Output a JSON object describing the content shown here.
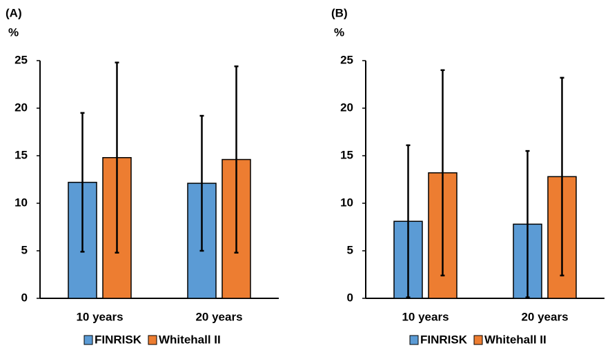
{
  "chart_data": [
    {
      "type": "bar",
      "panel_label": "(A)",
      "ylabel": "%",
      "categories": [
        "10 years",
        "20 years"
      ],
      "series": [
        {
          "name": "FINRISK",
          "color": "#5b9bd5",
          "values": [
            12.2,
            12.1
          ],
          "errors": [
            7.3,
            7.1
          ]
        },
        {
          "name": "Whitehall II",
          "color": "#ed7d31",
          "values": [
            14.8,
            14.6
          ],
          "errors": [
            10.0,
            9.8
          ]
        }
      ],
      "ylim": [
        0,
        25
      ],
      "yticks": [
        0,
        5,
        10,
        15,
        20,
        25
      ]
    },
    {
      "type": "bar",
      "panel_label": "(B)",
      "ylabel": "%",
      "categories": [
        "10 years",
        "20 years"
      ],
      "series": [
        {
          "name": "FINRISK",
          "color": "#5b9bd5",
          "values": [
            8.1,
            7.8
          ],
          "errors": [
            8.0,
            7.7
          ]
        },
        {
          "name": "Whitehall II",
          "color": "#ed7d31",
          "values": [
            13.2,
            12.8
          ],
          "errors": [
            10.8,
            10.4
          ]
        }
      ],
      "ylim": [
        0,
        25
      ],
      "yticks": [
        0,
        5,
        10,
        15,
        20,
        25
      ]
    }
  ]
}
